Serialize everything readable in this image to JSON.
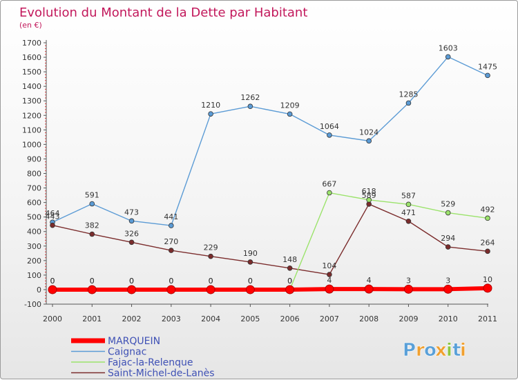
{
  "chart_data": {
    "type": "line",
    "title": "Evolution du Montant de la Dette par Habitant",
    "subtitle": "(en €)",
    "categories": [
      "2000",
      "2001",
      "2002",
      "2003",
      "2004",
      "2005",
      "2006",
      "2007",
      "2008",
      "2009",
      "2010",
      "2011"
    ],
    "ylim": [
      -100,
      1700
    ],
    "yticks": [
      -100,
      0,
      100,
      200,
      300,
      400,
      500,
      600,
      700,
      800,
      900,
      1000,
      1100,
      1200,
      1300,
      1400,
      1500,
      1600,
      1700
    ],
    "grid": false,
    "legend_position": "bottom-left",
    "series": [
      {
        "name": "MARQUEIN",
        "color": "#ff0000",
        "values": [
          0,
          0,
          0,
          0,
          0,
          0,
          0,
          4,
          4,
          3,
          3,
          10
        ],
        "labels": [
          "0",
          "0",
          "0",
          "0",
          "0",
          "0",
          "0",
          "4",
          "4",
          "3",
          "3",
          "10"
        ]
      },
      {
        "name": "Caignac",
        "color": "#5b9bd5",
        "values": [
          464,
          591,
          473,
          441,
          1210,
          1262,
          1209,
          1064,
          1024,
          1285,
          1603,
          1475
        ],
        "labels": [
          "464",
          "591",
          "473",
          "441",
          "1210",
          "1262",
          "1209",
          "1064",
          "1024",
          "1285",
          "1603",
          "1475"
        ]
      },
      {
        "name": "Fajac-la-Relenque",
        "color": "#9be36b",
        "values": [
          0,
          0,
          0,
          0,
          0,
          0,
          0,
          667,
          618,
          587,
          529,
          492
        ],
        "labels": [
          "0",
          "0",
          "0",
          "0",
          "0",
          "0",
          "0",
          "667",
          "618",
          "587",
          "529",
          "492"
        ]
      },
      {
        "name": "Saint-Michel-de-Lanès",
        "color": "#7b2c2c",
        "values": [
          443,
          382,
          326,
          270,
          229,
          190,
          148,
          104,
          589,
          471,
          294,
          264
        ],
        "labels": [
          "443",
          "382",
          "326",
          "270",
          "229",
          "190",
          "148",
          "104",
          "589",
          "471",
          "294",
          "264"
        ]
      }
    ]
  },
  "logo": {
    "text": "Proxiti"
  }
}
